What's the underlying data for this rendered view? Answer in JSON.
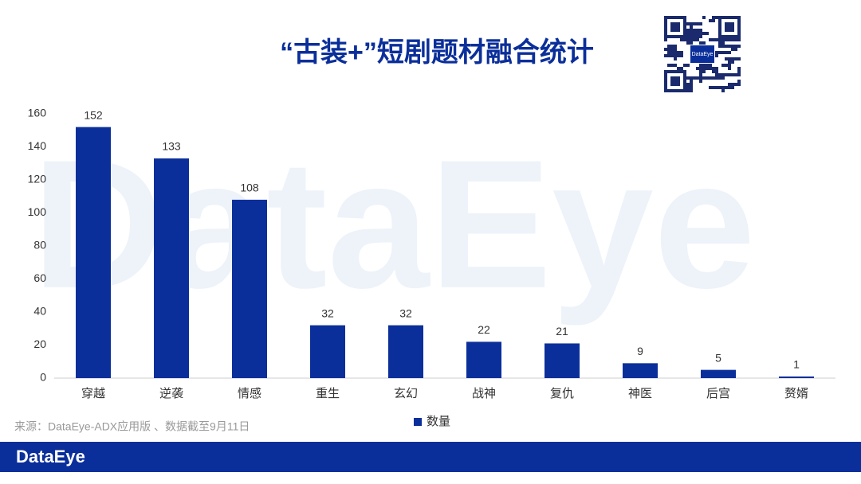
{
  "chart_data": {
    "type": "bar",
    "title": "“古装+”短剧题材融合统计",
    "categories": [
      "穿越",
      "逆袭",
      "情感",
      "重生",
      "玄幻",
      "战神",
      "复仇",
      "神医",
      "后宫",
      "赘婿"
    ],
    "series": [
      {
        "name": "数量",
        "color": "#0b2f9a",
        "values": [
          152,
          133,
          108,
          32,
          32,
          22,
          21,
          9,
          5,
          1
        ]
      }
    ],
    "ylim": [
      0,
      160
    ],
    "yticks": [
      0,
      20,
      40,
      60,
      80,
      100,
      120,
      140,
      160
    ],
    "grid": false,
    "legend": "bottom",
    "source": "来源：DataEye-ADX应用版 、数据截至9月11日",
    "watermark": "DataEye",
    "brand": "DataEye",
    "qr_label": "DataEye"
  }
}
